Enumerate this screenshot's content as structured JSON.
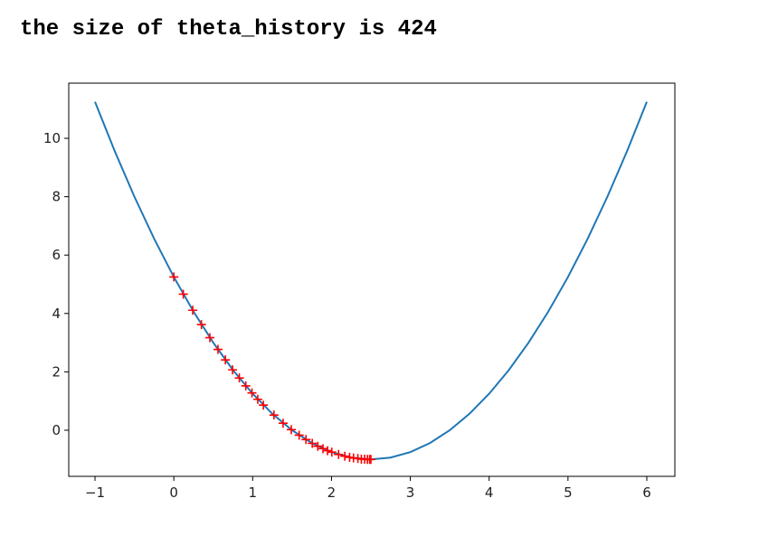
{
  "output_text": "the size of theta_history is 424",
  "chart_data": {
    "type": "line",
    "xlim": [
      -1.333,
      6.356
    ],
    "ylim": [
      -1.58,
      11.89
    ],
    "xticks": [
      {
        "value": -1,
        "label": "−1"
      },
      0,
      1,
      2,
      3,
      4,
      5,
      6
    ],
    "yticks": [
      0,
      2,
      4,
      6,
      8,
      10
    ],
    "grid": false,
    "series": [
      {
        "type": "line",
        "color": "#1f77b4",
        "x": [
          -1,
          -0.75,
          -0.5,
          -0.25,
          0,
          0.25,
          0.5,
          0.75,
          1,
          1.25,
          1.5,
          1.75,
          2,
          2.25,
          2.5,
          2.75,
          3,
          3.25,
          3.5,
          3.75,
          4,
          4.25,
          4.5,
          4.75,
          5,
          5.25,
          5.5,
          5.75,
          6
        ],
        "values": [
          11.25,
          9.5625,
          8,
          6.5625,
          5.25,
          4.0625,
          3,
          2.0625,
          1.25,
          0.5625,
          0,
          -0.4375,
          -0.75,
          -0.9375,
          -1,
          -0.9375,
          -0.75,
          -0.4375,
          0,
          0.5625,
          1.25,
          2.0625,
          3,
          4.0625,
          5.25,
          6.5625,
          8,
          9.5625,
          11.25
        ]
      },
      {
        "type": "scatter",
        "marker": "+",
        "color": "#ff0000",
        "x": [
          0,
          0.12,
          0.24,
          0.35,
          0.457,
          0.56,
          0.654,
          0.745,
          0.831,
          0.913,
          0.991,
          1.065,
          1.136,
          1.27,
          1.386,
          1.49,
          1.59,
          1.676,
          1.756,
          1.826,
          1.892,
          1.95,
          2.004,
          2.09,
          2.169,
          2.23,
          2.279,
          2.335,
          2.379,
          2.42,
          2.456,
          2.484,
          2.4995
        ],
        "values": [
          5.25,
          4.66,
          4.11,
          3.62,
          3.17,
          2.77,
          2.41,
          2.07,
          1.79,
          1.52,
          1.28,
          1.06,
          0.86,
          0.52,
          0.24,
          0.02,
          -0.17,
          -0.32,
          -0.45,
          -0.55,
          -0.63,
          -0.7,
          -0.75,
          -0.83,
          -0.89,
          -0.93,
          -0.95,
          -0.97,
          -0.99,
          -0.99,
          -1.0,
          -1.0,
          -1.0
        ]
      }
    ]
  }
}
